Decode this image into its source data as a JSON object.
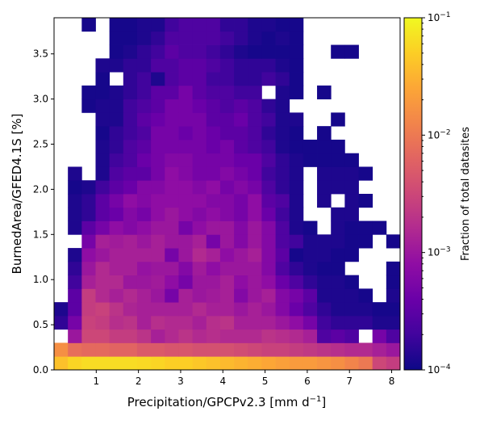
{
  "chart_data": {
    "type": "heatmap",
    "xlabel": "Precipitation/GPCPv2.3 [mm d",
    "xlabel_sup": "−1",
    "xlabel_end": "]",
    "ylabel": "BurnedArea/GFED4.1S [%]",
    "colorbar_label": "Fraction of total datasites",
    "xlim": [
      0.0,
      8.2
    ],
    "ylim": [
      0.0,
      3.9
    ],
    "x_ticks": [
      1,
      2,
      3,
      4,
      5,
      6,
      7,
      8
    ],
    "x_tick_labels": [
      "1",
      "2",
      "3",
      "4",
      "5",
      "6",
      "7",
      "8"
    ],
    "y_ticks": [
      0.0,
      0.5,
      1.0,
      1.5,
      2.0,
      2.5,
      3.0,
      3.5
    ],
    "y_tick_labels": [
      "0.0",
      "0.5",
      "1.0",
      "1.5",
      "2.0",
      "2.5",
      "3.0",
      "3.5"
    ],
    "color_scale": "log",
    "colorbar_range": [
      0.0001,
      0.1
    ],
    "colorbar_tick_base": "10",
    "colorbar_tick_exponents": [
      "−4",
      "−3",
      "−2",
      "−1"
    ],
    "colormap": "plasma",
    "bin_width_x": 0.328,
    "bin_width_y": 0.15,
    "n_x_bins": 25,
    "n_y_bins": 26,
    "value_encoding": "log10 of fraction of total datasites, listed by row from y=0.0 upward; null means empty bin",
    "log10_values": [
      [
        -1.4,
        -1.25,
        -1.2,
        -1.2,
        -1.2,
        -1.2,
        -1.22,
        -1.25,
        -1.3,
        -1.3,
        -1.35,
        -1.4,
        -1.45,
        -1.5,
        -1.55,
        -1.6,
        -1.65,
        -1.7,
        -1.7,
        -1.75,
        -1.8,
        -1.9,
        -2.0,
        -2.5,
        -2.6
      ],
      [
        -1.8,
        -2.1,
        -2.15,
        -2.15,
        -2.2,
        -2.2,
        -2.3,
        -2.3,
        -2.35,
        -2.35,
        -2.4,
        -2.4,
        -2.4,
        -2.45,
        -2.5,
        -2.55,
        -2.55,
        -2.6,
        -2.65,
        -2.7,
        -2.75,
        -2.8,
        -2.8,
        -2.9,
        -3.0
      ],
      [
        null,
        -3.0,
        -2.5,
        -2.5,
        -2.6,
        -2.6,
        -2.7,
        -2.9,
        -2.8,
        -2.7,
        -2.8,
        -2.75,
        -2.8,
        -2.8,
        -2.8,
        -2.7,
        -2.75,
        -2.8,
        -2.9,
        -3.6,
        -3.5,
        -3.6,
        null,
        -3.3,
        -3.6
      ],
      [
        -3.8,
        -3.3,
        -2.55,
        -2.6,
        -2.75,
        -2.7,
        -2.9,
        -2.75,
        -2.8,
        -2.8,
        -2.9,
        -2.75,
        -2.7,
        -2.9,
        -2.9,
        -2.9,
        -3.0,
        -3.1,
        -3.3,
        -3.7,
        -3.8,
        -3.8,
        -3.8,
        -3.9,
        -3.9
      ],
      [
        -3.9,
        -3.5,
        -2.6,
        -2.55,
        -2.7,
        -2.85,
        -2.9,
        -2.9,
        -2.9,
        -2.9,
        -2.8,
        -2.9,
        -2.9,
        -3.0,
        -2.9,
        -3.0,
        -3.2,
        -3.4,
        -3.6,
        -3.8,
        -3.9,
        -3.9,
        -3.9,
        -3.95,
        -3.95
      ],
      [
        null,
        -3.5,
        -2.6,
        -2.8,
        -2.9,
        -2.8,
        -2.9,
        -3.0,
        -3.3,
        -2.9,
        -3.0,
        -2.95,
        -2.9,
        -3.2,
        -3.0,
        -2.9,
        -3.2,
        -3.3,
        -3.5,
        -3.9,
        -3.9,
        -3.9,
        -3.95,
        null,
        -3.9
      ],
      [
        null,
        -3.7,
        -2.9,
        -2.8,
        -2.8,
        -3.0,
        -3.0,
        -2.95,
        -3.1,
        -3.3,
        -3.0,
        -3.0,
        -2.9,
        -3.1,
        -3.0,
        -3.1,
        -3.4,
        -3.6,
        -3.8,
        -3.9,
        -3.9,
        -3.95,
        null,
        null,
        -3.95
      ],
      [
        null,
        -3.8,
        -3.0,
        -2.8,
        -2.9,
        -2.9,
        -3.05,
        -3.0,
        -3.0,
        -3.2,
        -2.95,
        -3.1,
        -3.0,
        -3.0,
        -3.0,
        -3.2,
        -3.6,
        -3.8,
        -3.9,
        -3.95,
        -3.95,
        null,
        null,
        null,
        -3.95
      ],
      [
        null,
        -3.9,
        -3.1,
        -3.0,
        -2.9,
        -2.9,
        -2.9,
        -2.9,
        -3.3,
        -3.0,
        -2.8,
        -2.9,
        -3.1,
        -3.0,
        -2.9,
        -3.2,
        -3.5,
        -3.95,
        -3.9,
        -3.9,
        -3.95,
        -3.95,
        null,
        null,
        null
      ],
      [
        null,
        null,
        -3.3,
        -2.9,
        -2.95,
        -2.9,
        -3.0,
        -2.9,
        -3.0,
        -3.0,
        -2.9,
        -3.3,
        -3.0,
        -3.2,
        -3.0,
        -3.2,
        -3.6,
        -3.7,
        -3.9,
        -3.9,
        -3.9,
        -3.95,
        -3.95,
        null,
        -3.95
      ],
      [
        null,
        -3.9,
        -3.5,
        -3.3,
        -3.1,
        -3.2,
        -3.1,
        -3.0,
        -3.0,
        -3.3,
        -3.1,
        -3.0,
        -3.0,
        -3.2,
        -3.0,
        -3.2,
        -3.6,
        -3.9,
        -3.95,
        null,
        -3.9,
        -3.95,
        -3.95,
        -3.95,
        null
      ],
      [
        null,
        -3.9,
        -3.8,
        -3.5,
        -3.4,
        -3.2,
        -3.3,
        -3.1,
        -3.0,
        -3.1,
        -3.2,
        -3.1,
        -3.2,
        -3.3,
        -3.1,
        -3.4,
        -3.7,
        -3.9,
        null,
        null,
        -3.9,
        -3.9,
        null,
        null,
        null
      ],
      [
        null,
        -3.9,
        -3.8,
        -3.5,
        -3.3,
        -3.1,
        -3.2,
        -3.1,
        -3.1,
        -3.1,
        -3.1,
        -3.2,
        -3.2,
        -3.3,
        -3.1,
        -3.5,
        -3.6,
        -3.9,
        null,
        -3.9,
        null,
        -3.9,
        -3.95,
        null,
        null
      ],
      [
        null,
        -3.95,
        -3.9,
        -3.7,
        -3.5,
        -3.4,
        -3.2,
        -3.2,
        -3.1,
        -3.1,
        -3.2,
        -3.1,
        -3.3,
        -3.2,
        -3.3,
        -3.6,
        -3.8,
        -3.9,
        null,
        -3.9,
        -3.9,
        -3.9,
        null,
        null,
        null
      ],
      [
        null,
        -3.9,
        null,
        -3.9,
        -3.6,
        -3.5,
        -3.5,
        -3.3,
        -3.1,
        -3.2,
        -3.3,
        -3.3,
        -3.2,
        -3.3,
        -3.4,
        -3.7,
        -3.8,
        -3.9,
        null,
        -3.9,
        -3.9,
        -3.9,
        -3.95,
        null,
        null
      ],
      [
        null,
        null,
        null,
        -3.9,
        -3.7,
        -3.6,
        -3.4,
        -3.3,
        -3.2,
        -3.2,
        -3.3,
        -3.3,
        -3.3,
        -3.4,
        -3.4,
        -3.6,
        -3.8,
        -3.9,
        -3.95,
        -3.95,
        -3.95,
        -3.95,
        null,
        null,
        null
      ],
      [
        null,
        null,
        null,
        -3.9,
        -3.8,
        -3.6,
        -3.5,
        -3.3,
        -3.3,
        -3.3,
        -3.3,
        -3.4,
        -3.3,
        -3.5,
        -3.6,
        -3.7,
        -3.9,
        -3.95,
        -3.95,
        -3.95,
        -3.95,
        null,
        null,
        null,
        null
      ],
      [
        null,
        null,
        null,
        -3.95,
        -3.8,
        -3.7,
        -3.6,
        -3.3,
        -3.3,
        -3.4,
        -3.3,
        -3.4,
        -3.5,
        -3.5,
        -3.6,
        -3.8,
        -3.9,
        -3.95,
        null,
        -3.95,
        null,
        null,
        null,
        null,
        null
      ],
      [
        null,
        null,
        null,
        -3.9,
        -3.9,
        -3.7,
        -3.5,
        -3.4,
        -3.3,
        -3.3,
        -3.3,
        -3.5,
        -3.5,
        -3.4,
        -3.6,
        -3.7,
        -3.9,
        -3.9,
        null,
        null,
        -3.95,
        null,
        null,
        null,
        null
      ],
      [
        null,
        null,
        -3.95,
        -3.9,
        -3.9,
        -3.7,
        -3.6,
        -3.5,
        -3.3,
        -3.3,
        -3.4,
        -3.5,
        -3.6,
        -3.5,
        -3.6,
        -3.8,
        -3.9,
        null,
        null,
        null,
        null,
        null,
        null,
        null,
        null
      ],
      [
        null,
        null,
        -3.95,
        -3.95,
        -3.9,
        -3.8,
        -3.7,
        -3.5,
        -3.5,
        -3.3,
        -3.5,
        -3.6,
        -3.6,
        -3.7,
        -3.7,
        null,
        -3.9,
        -3.95,
        null,
        -3.95,
        null,
        null,
        null,
        null,
        null
      ],
      [
        null,
        null,
        null,
        -3.95,
        null,
        -3.8,
        -3.7,
        -3.9,
        -3.6,
        -3.5,
        -3.5,
        -3.7,
        -3.7,
        -3.8,
        -3.8,
        -3.7,
        -3.8,
        -3.95,
        null,
        null,
        null,
        null,
        null,
        null,
        null
      ],
      [
        null,
        null,
        null,
        -3.9,
        -3.9,
        -3.8,
        -3.8,
        -3.6,
        -3.6,
        -3.5,
        -3.5,
        -3.6,
        -3.7,
        -3.8,
        -3.8,
        -3.8,
        -3.9,
        -3.95,
        null,
        null,
        null,
        null,
        null,
        null,
        null
      ],
      [
        null,
        null,
        null,
        null,
        -3.95,
        -3.9,
        -3.8,
        -3.7,
        -3.5,
        -3.6,
        -3.6,
        -3.7,
        -3.8,
        -3.9,
        -3.95,
        -3.95,
        -3.95,
        -3.95,
        null,
        null,
        -3.95,
        -3.95,
        null,
        null,
        null
      ],
      [
        null,
        null,
        null,
        null,
        -3.95,
        -3.95,
        -3.9,
        -3.8,
        -3.6,
        -3.6,
        -3.6,
        -3.6,
        -3.7,
        -3.8,
        -3.9,
        -3.95,
        -3.9,
        -3.95,
        null,
        null,
        null,
        null,
        null,
        null,
        null
      ],
      [
        null,
        null,
        -3.95,
        null,
        -3.95,
        -3.95,
        -3.9,
        -3.9,
        -3.7,
        -3.6,
        -3.6,
        -3.6,
        -3.8,
        -3.8,
        -3.9,
        -3.9,
        -3.95,
        -3.95,
        null,
        null,
        null,
        null,
        null,
        null,
        null
      ]
    ]
  }
}
